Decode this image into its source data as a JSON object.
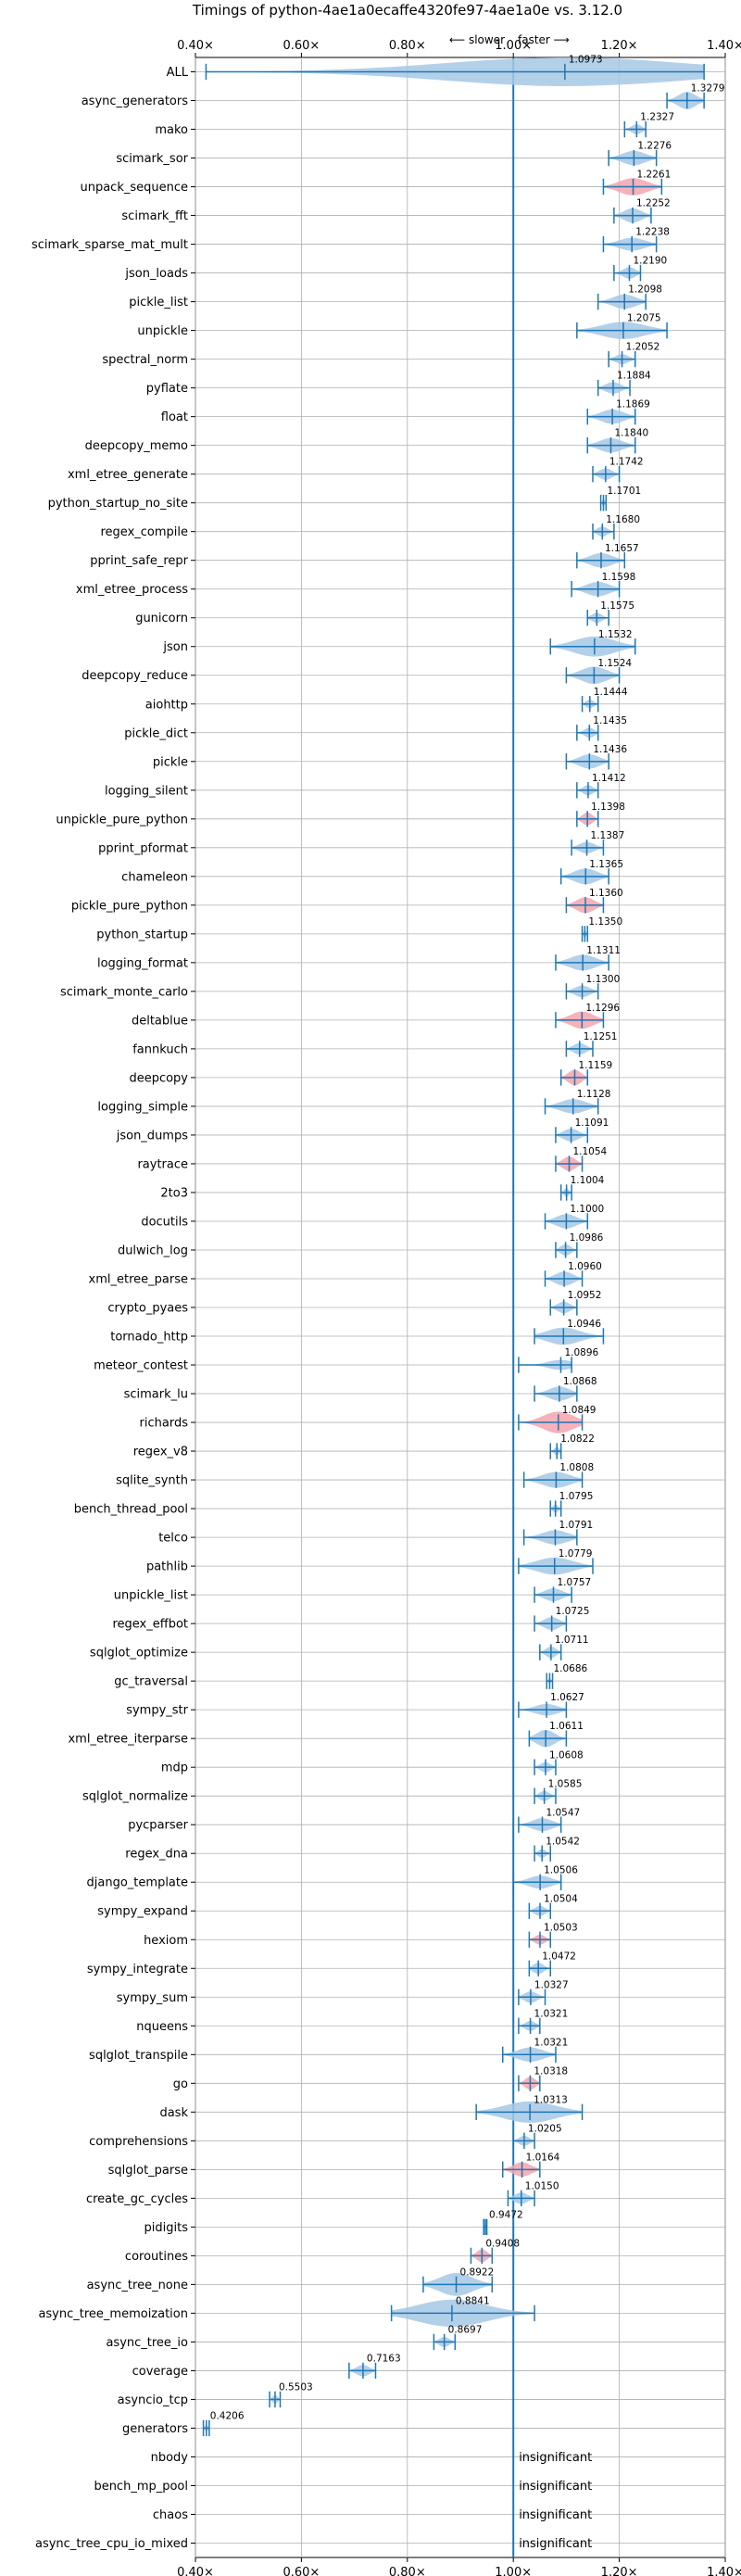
{
  "chart_data": {
    "type": "violin",
    "title": "Timings of python-4ae1a0ecaffe4320fe97-4ae1a0e vs. 3.12.0",
    "direction_labels": {
      "slower": "⟵ slower",
      "faster": "faster ⟶"
    },
    "xlim": [
      0.4,
      1.4
    ],
    "x_ticks": [
      0.4,
      0.6,
      0.8,
      1.0,
      1.2,
      1.4
    ],
    "x_tick_labels": [
      "0.40×",
      "0.60×",
      "0.80×",
      "1.00×",
      "1.20×",
      "1.40×"
    ],
    "reference_line": 1.0,
    "grid": true,
    "insignificant_label": "insignificant",
    "colors": {
      "normal": "#a6c8e5",
      "regressed": "#f4a3ad",
      "line": "#1f77b4"
    },
    "benchmarks": [
      {
        "name": "ALL",
        "value": 1.0973,
        "label": "1.0973",
        "range": [
          0.42,
          1.36
        ],
        "width": 1.0,
        "highlight": false
      },
      {
        "name": "async_generators",
        "value": 1.3279,
        "label": "1.3279",
        "range": [
          1.29,
          1.36
        ],
        "width": 0.6,
        "highlight": false
      },
      {
        "name": "mako",
        "value": 1.2327,
        "label": "1.2327",
        "range": [
          1.21,
          1.25
        ],
        "width": 0.35,
        "highlight": false
      },
      {
        "name": "scimark_sor",
        "value": 1.2276,
        "label": "1.2276",
        "range": [
          1.18,
          1.27
        ],
        "width": 0.5,
        "highlight": false
      },
      {
        "name": "unpack_sequence",
        "value": 1.2261,
        "label": "1.2261",
        "range": [
          1.17,
          1.28
        ],
        "width": 0.6,
        "highlight": true
      },
      {
        "name": "scimark_fft",
        "value": 1.2252,
        "label": "1.2252",
        "range": [
          1.19,
          1.26
        ],
        "width": 0.5,
        "highlight": false
      },
      {
        "name": "scimark_sparse_mat_mult",
        "value": 1.2238,
        "label": "1.2238",
        "range": [
          1.17,
          1.27
        ],
        "width": 0.45,
        "highlight": false
      },
      {
        "name": "json_loads",
        "value": 1.219,
        "label": "1.2190",
        "range": [
          1.19,
          1.24
        ],
        "width": 0.4,
        "highlight": false
      },
      {
        "name": "pickle_list",
        "value": 1.2098,
        "label": "1.2098",
        "range": [
          1.16,
          1.25
        ],
        "width": 0.5,
        "highlight": false
      },
      {
        "name": "unpickle",
        "value": 1.2075,
        "label": "1.2075",
        "range": [
          1.12,
          1.29
        ],
        "width": 0.6,
        "highlight": false
      },
      {
        "name": "spectral_norm",
        "value": 1.2052,
        "label": "1.2052",
        "range": [
          1.18,
          1.23
        ],
        "width": 0.35,
        "highlight": false
      },
      {
        "name": "pyflate",
        "value": 1.1884,
        "label": "1.1884",
        "range": [
          1.16,
          1.22
        ],
        "width": 0.4,
        "highlight": false
      },
      {
        "name": "float",
        "value": 1.1869,
        "label": "1.1869",
        "range": [
          1.14,
          1.23
        ],
        "width": 0.5,
        "highlight": false
      },
      {
        "name": "deepcopy_memo",
        "value": 1.184,
        "label": "1.1840",
        "range": [
          1.14,
          1.23
        ],
        "width": 0.5,
        "highlight": false
      },
      {
        "name": "xml_etree_generate",
        "value": 1.1742,
        "label": "1.1742",
        "range": [
          1.15,
          1.2
        ],
        "width": 0.4,
        "highlight": false
      },
      {
        "name": "python_startup_no_site",
        "value": 1.1701,
        "label": "1.1701",
        "range": [
          1.165,
          1.175
        ],
        "width": 0.25,
        "highlight": false
      },
      {
        "name": "regex_compile",
        "value": 1.168,
        "label": "1.1680",
        "range": [
          1.15,
          1.19
        ],
        "width": 0.35,
        "highlight": false
      },
      {
        "name": "pprint_safe_repr",
        "value": 1.1657,
        "label": "1.1657",
        "range": [
          1.12,
          1.21
        ],
        "width": 0.5,
        "highlight": false
      },
      {
        "name": "xml_etree_process",
        "value": 1.1598,
        "label": "1.1598",
        "range": [
          1.11,
          1.2
        ],
        "width": 0.5,
        "highlight": false
      },
      {
        "name": "gunicorn",
        "value": 1.1575,
        "label": "1.1575",
        "range": [
          1.14,
          1.18
        ],
        "width": 0.35,
        "highlight": false
      },
      {
        "name": "json",
        "value": 1.1532,
        "label": "1.1532",
        "range": [
          1.07,
          1.23
        ],
        "width": 0.7,
        "highlight": false
      },
      {
        "name": "deepcopy_reduce",
        "value": 1.1524,
        "label": "1.1524",
        "range": [
          1.1,
          1.2
        ],
        "width": 0.6,
        "highlight": false
      },
      {
        "name": "aiohttp",
        "value": 1.1444,
        "label": "1.1444",
        "range": [
          1.13,
          1.16
        ],
        "width": 0.3,
        "highlight": false
      },
      {
        "name": "pickle_dict",
        "value": 1.1435,
        "label": "1.1435",
        "range": [
          1.12,
          1.16
        ],
        "width": 0.35,
        "highlight": false
      },
      {
        "name": "pickle",
        "value": 1.1436,
        "label": "1.1436",
        "range": [
          1.1,
          1.18
        ],
        "width": 0.5,
        "highlight": false
      },
      {
        "name": "logging_silent",
        "value": 1.1412,
        "label": "1.1412",
        "range": [
          1.12,
          1.16
        ],
        "width": 0.35,
        "highlight": false
      },
      {
        "name": "unpickle_pure_python",
        "value": 1.1398,
        "label": "1.1398",
        "range": [
          1.12,
          1.16
        ],
        "width": 0.45,
        "highlight": true
      },
      {
        "name": "pprint_pformat",
        "value": 1.1387,
        "label": "1.1387",
        "range": [
          1.11,
          1.17
        ],
        "width": 0.4,
        "highlight": false
      },
      {
        "name": "chameleon",
        "value": 1.1365,
        "label": "1.1365",
        "range": [
          1.09,
          1.18
        ],
        "width": 0.55,
        "highlight": false
      },
      {
        "name": "pickle_pure_python",
        "value": 1.136,
        "label": "1.1360",
        "range": [
          1.1,
          1.17
        ],
        "width": 0.55,
        "highlight": true
      },
      {
        "name": "python_startup",
        "value": 1.135,
        "label": "1.1350",
        "range": [
          1.13,
          1.14
        ],
        "width": 0.25,
        "highlight": false
      },
      {
        "name": "logging_format",
        "value": 1.1311,
        "label": "1.1311",
        "range": [
          1.08,
          1.18
        ],
        "width": 0.55,
        "highlight": false
      },
      {
        "name": "scimark_monte_carlo",
        "value": 1.13,
        "label": "1.1300",
        "range": [
          1.1,
          1.16
        ],
        "width": 0.4,
        "highlight": false
      },
      {
        "name": "deltablue",
        "value": 1.1296,
        "label": "1.1296",
        "range": [
          1.08,
          1.17
        ],
        "width": 0.6,
        "highlight": true
      },
      {
        "name": "fannkuch",
        "value": 1.1251,
        "label": "1.1251",
        "range": [
          1.1,
          1.15
        ],
        "width": 0.4,
        "highlight": false
      },
      {
        "name": "deepcopy",
        "value": 1.1159,
        "label": "1.1159",
        "range": [
          1.09,
          1.14
        ],
        "width": 0.55,
        "highlight": true
      },
      {
        "name": "logging_simple",
        "value": 1.1128,
        "label": "1.1128",
        "range": [
          1.06,
          1.16
        ],
        "width": 0.5,
        "highlight": false
      },
      {
        "name": "json_dumps",
        "value": 1.1091,
        "label": "1.1091",
        "range": [
          1.08,
          1.14
        ],
        "width": 0.45,
        "highlight": false
      },
      {
        "name": "raytrace",
        "value": 1.1054,
        "label": "1.1054",
        "range": [
          1.08,
          1.13
        ],
        "width": 0.5,
        "highlight": true
      },
      {
        "name": "2to3",
        "value": 1.1004,
        "label": "1.1004",
        "range": [
          1.09,
          1.11
        ],
        "width": 0.3,
        "highlight": false
      },
      {
        "name": "docutils",
        "value": 1.1,
        "label": "1.1000",
        "range": [
          1.06,
          1.14
        ],
        "width": 0.5,
        "highlight": false
      },
      {
        "name": "dulwich_log",
        "value": 1.0986,
        "label": "1.0986",
        "range": [
          1.08,
          1.12
        ],
        "width": 0.4,
        "highlight": false
      },
      {
        "name": "xml_etree_parse",
        "value": 1.096,
        "label": "1.0960",
        "range": [
          1.06,
          1.13
        ],
        "width": 0.5,
        "highlight": false
      },
      {
        "name": "crypto_pyaes",
        "value": 1.0952,
        "label": "1.0952",
        "range": [
          1.07,
          1.12
        ],
        "width": 0.4,
        "highlight": false
      },
      {
        "name": "tornado_http",
        "value": 1.0946,
        "label": "1.0946",
        "range": [
          1.04,
          1.17
        ],
        "width": 0.6,
        "highlight": false
      },
      {
        "name": "meteor_contest",
        "value": 1.0896,
        "label": "1.0896",
        "range": [
          1.01,
          1.11
        ],
        "width": 0.35,
        "highlight": false
      },
      {
        "name": "scimark_lu",
        "value": 1.0868,
        "label": "1.0868",
        "range": [
          1.04,
          1.12
        ],
        "width": 0.5,
        "highlight": false
      },
      {
        "name": "richards",
        "value": 1.0849,
        "label": "1.0849",
        "range": [
          1.01,
          1.13
        ],
        "width": 0.75,
        "highlight": true
      },
      {
        "name": "regex_v8",
        "value": 1.0822,
        "label": "1.0822",
        "range": [
          1.07,
          1.09
        ],
        "width": 0.3,
        "highlight": false
      },
      {
        "name": "sqlite_synth",
        "value": 1.0808,
        "label": "1.0808",
        "range": [
          1.02,
          1.13
        ],
        "width": 0.55,
        "highlight": false
      },
      {
        "name": "bench_thread_pool",
        "value": 1.0795,
        "label": "1.0795",
        "range": [
          1.07,
          1.09
        ],
        "width": 0.3,
        "highlight": false
      },
      {
        "name": "telco",
        "value": 1.0791,
        "label": "1.0791",
        "range": [
          1.02,
          1.12
        ],
        "width": 0.5,
        "highlight": false
      },
      {
        "name": "pathlib",
        "value": 1.0779,
        "label": "1.0779",
        "range": [
          1.01,
          1.15
        ],
        "width": 0.6,
        "highlight": false
      },
      {
        "name": "unpickle_list",
        "value": 1.0757,
        "label": "1.0757",
        "range": [
          1.04,
          1.11
        ],
        "width": 0.45,
        "highlight": false
      },
      {
        "name": "regex_effbot",
        "value": 1.0725,
        "label": "1.0725",
        "range": [
          1.04,
          1.1
        ],
        "width": 0.45,
        "highlight": false
      },
      {
        "name": "sqlglot_optimize",
        "value": 1.0711,
        "label": "1.0711",
        "range": [
          1.05,
          1.09
        ],
        "width": 0.4,
        "highlight": false
      },
      {
        "name": "gc_traversal",
        "value": 1.0686,
        "label": "1.0686",
        "range": [
          1.063,
          1.074
        ],
        "width": 0.2,
        "highlight": false
      },
      {
        "name": "sympy_str",
        "value": 1.0627,
        "label": "1.0627",
        "range": [
          1.01,
          1.1
        ],
        "width": 0.4,
        "highlight": false
      },
      {
        "name": "xml_etree_iterparse",
        "value": 1.0611,
        "label": "1.0611",
        "range": [
          1.03,
          1.1
        ],
        "width": 0.6,
        "highlight": false
      },
      {
        "name": "mdp",
        "value": 1.0608,
        "label": "1.0608",
        "range": [
          1.04,
          1.08
        ],
        "width": 0.35,
        "highlight": false
      },
      {
        "name": "sqlglot_normalize",
        "value": 1.0585,
        "label": "1.0585",
        "range": [
          1.04,
          1.08
        ],
        "width": 0.35,
        "highlight": false
      },
      {
        "name": "pycparser",
        "value": 1.0547,
        "label": "1.0547",
        "range": [
          1.01,
          1.09
        ],
        "width": 0.45,
        "highlight": false
      },
      {
        "name": "regex_dna",
        "value": 1.0542,
        "label": "1.0542",
        "range": [
          1.04,
          1.07
        ],
        "width": 0.3,
        "highlight": false
      },
      {
        "name": "django_template",
        "value": 1.0506,
        "label": "1.0506",
        "range": [
          1.0,
          1.09
        ],
        "width": 0.45,
        "highlight": false
      },
      {
        "name": "sympy_expand",
        "value": 1.0504,
        "label": "1.0504",
        "range": [
          1.03,
          1.07
        ],
        "width": 0.35,
        "highlight": false
      },
      {
        "name": "hexiom",
        "value": 1.0503,
        "label": "1.0503",
        "range": [
          1.03,
          1.07
        ],
        "width": 0.35,
        "highlight": true
      },
      {
        "name": "sympy_integrate",
        "value": 1.0472,
        "label": "1.0472",
        "range": [
          1.03,
          1.07
        ],
        "width": 0.4,
        "highlight": false
      },
      {
        "name": "sympy_sum",
        "value": 1.0327,
        "label": "1.0327",
        "range": [
          1.01,
          1.06
        ],
        "width": 0.4,
        "highlight": false
      },
      {
        "name": "nqueens",
        "value": 1.0321,
        "label": "1.0321",
        "range": [
          1.01,
          1.05
        ],
        "width": 0.35,
        "highlight": false
      },
      {
        "name": "sqlglot_transpile",
        "value": 1.0321,
        "label": "1.0321",
        "range": [
          0.98,
          1.08
        ],
        "width": 0.5,
        "highlight": false
      },
      {
        "name": "go",
        "value": 1.0318,
        "label": "1.0318",
        "range": [
          1.01,
          1.05
        ],
        "width": 0.45,
        "highlight": true
      },
      {
        "name": "dask",
        "value": 1.0313,
        "label": "1.0313",
        "range": [
          0.93,
          1.13
        ],
        "width": 0.75,
        "highlight": false
      },
      {
        "name": "comprehensions",
        "value": 1.0205,
        "label": "1.0205",
        "range": [
          1.0,
          1.04
        ],
        "width": 0.35,
        "highlight": false
      },
      {
        "name": "sqlglot_parse",
        "value": 1.0164,
        "label": "1.0164",
        "range": [
          0.98,
          1.05
        ],
        "width": 0.5,
        "highlight": true
      },
      {
        "name": "create_gc_cycles",
        "value": 1.015,
        "label": "1.0150",
        "range": [
          0.99,
          1.04
        ],
        "width": 0.4,
        "highlight": false
      },
      {
        "name": "pidigits",
        "value": 0.9472,
        "label": "0.9472",
        "range": [
          0.944,
          0.95
        ],
        "width": 0.2,
        "highlight": false
      },
      {
        "name": "coroutines",
        "value": 0.9408,
        "label": "0.9408",
        "range": [
          0.92,
          0.96
        ],
        "width": 0.45,
        "highlight": true
      },
      {
        "name": "async_tree_none",
        "value": 0.8922,
        "label": "0.8922",
        "range": [
          0.83,
          0.96
        ],
        "width": 0.8,
        "highlight": false
      },
      {
        "name": "async_tree_memoization",
        "value": 0.8841,
        "label": "0.8841",
        "range": [
          0.77,
          1.04
        ],
        "width": 0.95,
        "highlight": false
      },
      {
        "name": "async_tree_io",
        "value": 0.8697,
        "label": "0.8697",
        "range": [
          0.85,
          0.89
        ],
        "width": 0.35,
        "highlight": false
      },
      {
        "name": "coverage",
        "value": 0.7163,
        "label": "0.7163",
        "range": [
          0.69,
          0.74
        ],
        "width": 0.4,
        "highlight": false
      },
      {
        "name": "asyncio_tcp",
        "value": 0.5503,
        "label": "0.5503",
        "range": [
          0.54,
          0.56
        ],
        "width": 0.3,
        "highlight": false
      },
      {
        "name": "generators",
        "value": 0.4206,
        "label": "0.4206",
        "range": [
          0.415,
          0.426
        ],
        "width": 0.25,
        "highlight": false
      },
      {
        "name": "nbody",
        "value": null,
        "label": null,
        "insignificant": true
      },
      {
        "name": "bench_mp_pool",
        "value": null,
        "label": null,
        "insignificant": true
      },
      {
        "name": "chaos",
        "value": null,
        "label": null,
        "insignificant": true
      },
      {
        "name": "async_tree_cpu_io_mixed",
        "value": null,
        "label": null,
        "insignificant": true
      }
    ]
  }
}
